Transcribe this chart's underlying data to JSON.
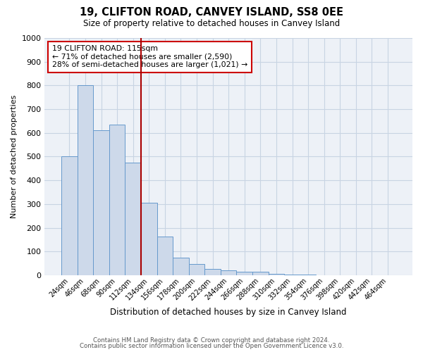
{
  "title": "19, CLIFTON ROAD, CANVEY ISLAND, SS8 0EE",
  "subtitle": "Size of property relative to detached houses in Canvey Island",
  "bar_values": [
    500,
    800,
    610,
    635,
    475,
    305,
    163,
    75,
    47,
    25,
    20,
    15,
    15,
    5,
    2,
    2,
    1,
    1,
    1,
    1,
    1
  ],
  "bin_labels": [
    "24sqm",
    "46sqm",
    "68sqm",
    "90sqm",
    "112sqm",
    "134sqm",
    "156sqm",
    "178sqm",
    "200sqm",
    "222sqm",
    "244sqm",
    "266sqm",
    "288sqm",
    "310sqm",
    "332sqm",
    "354sqm",
    "376sqm",
    "398sqm",
    "420sqm",
    "442sqm",
    "464sqm"
  ],
  "bar_color": "#cdd9ea",
  "bar_edge_color": "#6699cc",
  "vline_color": "#aa0000",
  "ylabel": "Number of detached properties",
  "xlabel": "Distribution of detached houses by size in Canvey Island",
  "ylim": [
    0,
    1000
  ],
  "yticks": [
    0,
    100,
    200,
    300,
    400,
    500,
    600,
    700,
    800,
    900,
    1000
  ],
  "annotation_title": "19 CLIFTON ROAD: 115sqm",
  "annotation_line1": "← 71% of detached houses are smaller (2,590)",
  "annotation_line2": "28% of semi-detached houses are larger (1,021) →",
  "box_edge_color": "#cc0000",
  "footer1": "Contains HM Land Registry data © Crown copyright and database right 2024.",
  "footer2": "Contains public sector information licensed under the Open Government Licence v3.0.",
  "grid_color": "#c8d4e3",
  "background_color": "#edf1f7"
}
